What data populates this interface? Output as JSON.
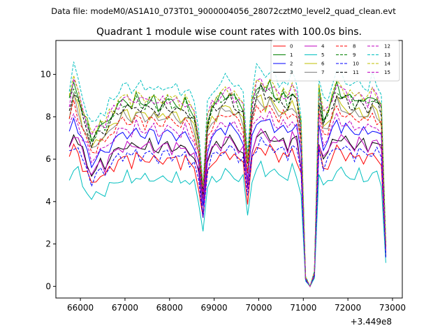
{
  "chart_data": {
    "type": "line",
    "suptitle": "Data file: modeM0/AS1A10_073T01_9000004056_28072cztM0_level2_quad_clean.evt",
    "title": "Quadrant 1 module wise count rates with 100.0s bins.",
    "xlabel": "",
    "ylabel": "",
    "x_offset_label": "+3.449e8",
    "xlim": [
      65450,
      73220
    ],
    "ylim": [
      -0.55,
      11.6
    ],
    "x_ticks": [
      66000,
      67000,
      68000,
      69000,
      70000,
      71000,
      72000,
      73000
    ],
    "y_ticks": [
      0,
      2,
      4,
      6,
      8,
      10
    ],
    "legend_position": "top-right",
    "series": [
      {
        "name": "0",
        "color": "#ff0000",
        "style": "solid",
        "base": 6.0
      },
      {
        "name": "1",
        "color": "#008000",
        "style": "solid",
        "base": 8.7
      },
      {
        "name": "2",
        "color": "#0000ff",
        "style": "solid",
        "base": 7.2
      },
      {
        "name": "3",
        "color": "#000000",
        "style": "solid",
        "base": 6.6
      },
      {
        "name": "4",
        "color": "#bf00bf",
        "style": "solid",
        "base": 6.6
      },
      {
        "name": "5",
        "color": "#00bfbf",
        "style": "solid",
        "base": 5.1
      },
      {
        "name": "6",
        "color": "#bfbf00",
        "style": "solid",
        "base": 8.1
      },
      {
        "name": "7",
        "color": "#808080",
        "style": "solid",
        "base": 8.0
      },
      {
        "name": "8",
        "color": "#ff0000",
        "style": "dashed",
        "base": 7.8
      },
      {
        "name": "9",
        "color": "#008000",
        "style": "dashed",
        "base": 8.6
      },
      {
        "name": "10",
        "color": "#0000ff",
        "style": "dashed",
        "base": 6.2
      },
      {
        "name": "11",
        "color": "#000000",
        "style": "dashed",
        "base": 8.4
      },
      {
        "name": "12",
        "color": "#bf00bf",
        "style": "dashed",
        "base": 8.8
      },
      {
        "name": "13",
        "color": "#00bfbf",
        "style": "dashed",
        "base": 9.4
      },
      {
        "name": "14",
        "color": "#bfbf00",
        "style": "dashed",
        "base": 8.9
      },
      {
        "name": "15",
        "color": "#bf00bf",
        "style": "dashed",
        "base": 7.4
      }
    ],
    "shape": {
      "x": [
        65750,
        65850,
        65950,
        66050,
        66150,
        66250,
        66350,
        66450,
        66550,
        66650,
        66750,
        66850,
        66950,
        67050,
        67150,
        67250,
        67350,
        67450,
        67550,
        67650,
        67750,
        67850,
        67950,
        68050,
        68150,
        68250,
        68350,
        68450,
        68550,
        68650,
        68750,
        68850,
        68950,
        69050,
        69150,
        69250,
        69350,
        69450,
        69550,
        69650,
        69750,
        69850,
        69950,
        70050,
        70150,
        70250,
        70350,
        70450,
        70550,
        70650,
        70750,
        70850,
        70950,
        71050,
        71150,
        71250,
        71350,
        71450,
        71550,
        71650,
        71750,
        71850,
        71950,
        72050,
        72150,
        72250,
        72350,
        72450,
        72550,
        72650,
        72750,
        72850
      ],
      "scale": [
        1.0,
        1.1,
        1.04,
        0.95,
        0.88,
        0.8,
        0.84,
        0.88,
        0.86,
        0.92,
        0.95,
        0.98,
        1.0,
        1.01,
        0.98,
        1.02,
        1.0,
        0.99,
        1.01,
        1.0,
        0.97,
        1.0,
        1.01,
        0.99,
        1.0,
        0.97,
        1.0,
        0.96,
        0.93,
        0.8,
        0.52,
        0.9,
        0.98,
        1.0,
        1.02,
        1.04,
        1.05,
        1.02,
        0.99,
        0.97,
        0.68,
        0.98,
        1.08,
        1.1,
        1.06,
        1.08,
        1.05,
        1.02,
        1.04,
        1.0,
        1.07,
        1.03,
        0.86,
        0.05,
        0.0,
        0.08,
        1.05,
        0.92,
        0.95,
        1.02,
        1.08,
        1.05,
        1.04,
        1.02,
        1.0,
        1.03,
        1.01,
        0.99,
        1.04,
        1.02,
        0.97,
        0.22
      ]
    }
  }
}
